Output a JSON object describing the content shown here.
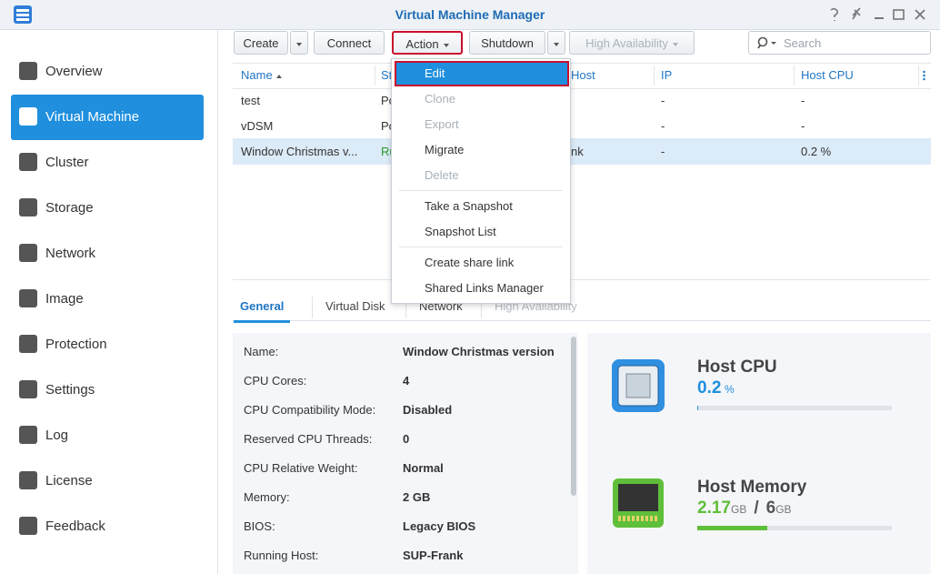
{
  "window": {
    "title": "Virtual Machine Manager"
  },
  "sidebar": {
    "items": [
      "Overview",
      "Virtual Machine",
      "Cluster",
      "Storage",
      "Network",
      "Image",
      "Protection",
      "Settings",
      "Log",
      "License",
      "Feedback"
    ],
    "selected_index": 1
  },
  "toolbar": {
    "buttons": [
      {
        "label": "Create",
        "split": true
      },
      {
        "label": "Connect"
      },
      {
        "label": "Action",
        "dropdown": true,
        "highlighted": true
      },
      {
        "label": "Shutdown",
        "split": true
      },
      {
        "label": "High Availability",
        "dropdown": true,
        "enabled": false
      }
    ],
    "search_placeholder": "Search"
  },
  "table": {
    "columns": [
      "Name",
      "St",
      "Host",
      "IP",
      "Host CPU"
    ],
    "rows": [
      [
        "test",
        "Po",
        null,
        "-",
        "-"
      ],
      [
        "vDSM",
        "Po",
        null,
        "-",
        "-"
      ],
      [
        "Window Christmas v...",
        "Ru",
        "nk",
        "-",
        "0.2 %"
      ]
    ],
    "selected_row": 2
  },
  "action_menu": {
    "groups": [
      [
        {
          "label": "Edit",
          "selected": true
        },
        {
          "label": "Clone",
          "enabled": false
        },
        {
          "label": "Export",
          "enabled": false
        },
        {
          "label": "Migrate"
        },
        {
          "label": "Delete",
          "enabled": false
        }
      ],
      [
        {
          "label": "Take a Snapshot"
        },
        {
          "label": "Snapshot List"
        }
      ],
      [
        {
          "label": "Create share link"
        },
        {
          "label": "Shared Links Manager"
        }
      ]
    ]
  },
  "tabs": [
    {
      "label": "General",
      "active": true
    },
    {
      "label": "Virtual Disk"
    },
    {
      "label": "Network"
    },
    {
      "label": "High Availability",
      "enabled": false
    }
  ],
  "details": [
    [
      "Name:",
      "Window Christmas version"
    ],
    [
      "CPU Cores:",
      "4"
    ],
    [
      "CPU Compatibility Mode:",
      "Disabled"
    ],
    [
      "Reserved CPU Threads:",
      "0"
    ],
    [
      "CPU Relative Weight:",
      "Normal"
    ],
    [
      "Memory:",
      "2 GB"
    ],
    [
      "BIOS:",
      "Legacy BIOS"
    ],
    [
      "Running Host:",
      "SUP-Frank"
    ]
  ],
  "resources": {
    "cpu": {
      "title": "Host CPU",
      "value": 0.2,
      "unit": "%"
    },
    "memory": {
      "title": "Host Memory",
      "used": 2.17,
      "used_unit": "GB",
      "separator": "/",
      "total": 6,
      "total_unit": "GB"
    }
  }
}
